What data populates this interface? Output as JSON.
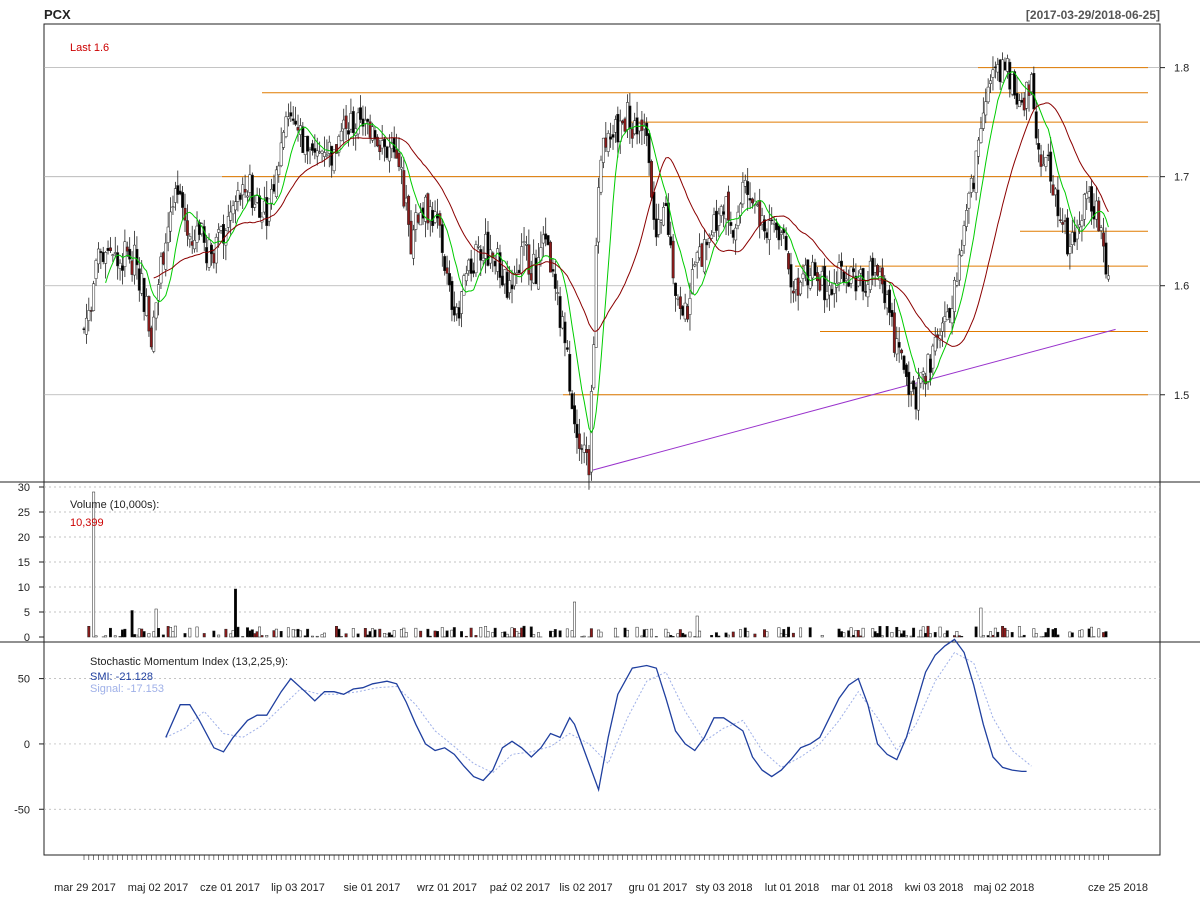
{
  "header": {
    "symbol": "PCX",
    "date_range": "[2017-03-29/2018-06-25]"
  },
  "colors": {
    "up_candle": "#ffffff",
    "down_candle": "#000000",
    "red_candle": "#8b1a1a",
    "sma_green": "#00cc00",
    "sma_darkred": "#8b0000",
    "hline_orange": "#e07b00",
    "trend_purple": "#9932cc",
    "smi_line": "#1f3f9f",
    "signal_line": "#9fb0e8",
    "grid": "#b0b0b0",
    "last_text": "#cc0000"
  },
  "chart_data": [
    {
      "type": "candlestick",
      "panel": "price",
      "last_label": "Last 1.6",
      "ylim": [
        1.42,
        1.84
      ],
      "yticks": [
        1.5,
        1.6,
        1.7,
        1.8
      ],
      "ytick_labels": [
        "1.5",
        "1.6",
        "1.7",
        "1.8"
      ],
      "x_tick_labels": [
        "mar 29 2017",
        "maj 02 2017",
        "cze 01 2017",
        "lip 03 2017",
        "sie 01 2017",
        "wrz 01 2017",
        "paź 02 2017",
        "lis 02 2017",
        "gru 01 2017",
        "sty 03 2018",
        "lut 01 2018",
        "mar 01 2018",
        "kwi 03 2018",
        "maj 02 2018",
        "cze 25 2018"
      ],
      "price_path": [
        [
          0,
          1.56
        ],
        [
          6,
          1.62
        ],
        [
          10,
          1.64
        ],
        [
          14,
          1.62
        ],
        [
          18,
          1.63
        ],
        [
          22,
          1.62
        ],
        [
          26,
          1.58
        ],
        [
          28,
          1.55
        ],
        [
          32,
          1.62
        ],
        [
          36,
          1.67
        ],
        [
          40,
          1.68
        ],
        [
          44,
          1.64
        ],
        [
          48,
          1.65
        ],
        [
          52,
          1.63
        ],
        [
          56,
          1.64
        ],
        [
          60,
          1.66
        ],
        [
          64,
          1.68
        ],
        [
          68,
          1.69
        ],
        [
          72,
          1.68
        ],
        [
          76,
          1.67
        ],
        [
          80,
          1.7
        ],
        [
          84,
          1.76
        ],
        [
          88,
          1.75
        ],
        [
          92,
          1.73
        ],
        [
          96,
          1.71
        ],
        [
          100,
          1.73
        ],
        [
          104,
          1.72
        ],
        [
          108,
          1.75
        ],
        [
          112,
          1.75
        ],
        [
          116,
          1.74
        ],
        [
          120,
          1.75
        ],
        [
          124,
          1.73
        ],
        [
          128,
          1.72
        ],
        [
          132,
          1.7
        ],
        [
          136,
          1.64
        ],
        [
          140,
          1.67
        ],
        [
          144,
          1.67
        ],
        [
          148,
          1.65
        ],
        [
          152,
          1.59
        ],
        [
          156,
          1.58
        ],
        [
          160,
          1.61
        ],
        [
          164,
          1.64
        ],
        [
          168,
          1.63
        ],
        [
          172,
          1.62
        ],
        [
          176,
          1.6
        ],
        [
          180,
          1.62
        ],
        [
          184,
          1.63
        ],
        [
          188,
          1.61
        ],
        [
          192,
          1.65
        ],
        [
          196,
          1.59
        ],
        [
          200,
          1.55
        ],
        [
          204,
          1.48
        ],
        [
          208,
          1.45
        ],
        [
          210,
          1.43
        ],
        [
          212,
          1.55
        ],
        [
          214,
          1.7
        ],
        [
          218,
          1.75
        ],
        [
          222,
          1.74
        ],
        [
          226,
          1.76
        ],
        [
          230,
          1.74
        ],
        [
          234,
          1.75
        ],
        [
          238,
          1.64
        ],
        [
          242,
          1.67
        ],
        [
          246,
          1.6
        ],
        [
          250,
          1.57
        ],
        [
          254,
          1.62
        ],
        [
          258,
          1.63
        ],
        [
          262,
          1.66
        ],
        [
          266,
          1.68
        ],
        [
          270,
          1.65
        ],
        [
          274,
          1.69
        ],
        [
          278,
          1.68
        ],
        [
          282,
          1.65
        ],
        [
          286,
          1.66
        ],
        [
          290,
          1.65
        ],
        [
          294,
          1.61
        ],
        [
          298,
          1.6
        ],
        [
          302,
          1.62
        ],
        [
          306,
          1.61
        ],
        [
          310,
          1.59
        ],
        [
          314,
          1.61
        ],
        [
          318,
          1.61
        ],
        [
          322,
          1.6
        ],
        [
          326,
          1.61
        ],
        [
          330,
          1.61
        ],
        [
          334,
          1.58
        ],
        [
          338,
          1.54
        ],
        [
          342,
          1.52
        ],
        [
          346,
          1.5
        ],
        [
          350,
          1.52
        ],
        [
          354,
          1.54
        ],
        [
          358,
          1.56
        ],
        [
          362,
          1.6
        ],
        [
          366,
          1.65
        ],
        [
          370,
          1.7
        ],
        [
          374,
          1.77
        ],
        [
          378,
          1.79
        ],
        [
          382,
          1.8
        ],
        [
          386,
          1.79
        ],
        [
          390,
          1.77
        ],
        [
          394,
          1.78
        ],
        [
          398,
          1.72
        ],
        [
          402,
          1.7
        ],
        [
          406,
          1.66
        ],
        [
          410,
          1.63
        ],
        [
          414,
          1.66
        ],
        [
          418,
          1.69
        ],
        [
          422,
          1.66
        ],
        [
          424,
          1.65
        ],
        [
          426,
          1.6
        ]
      ],
      "horizontal_levels": [
        1.8,
        1.777,
        1.75,
        1.7,
        1.65,
        1.618,
        1.558,
        1.5
      ],
      "trendline": [
        [
          210,
          1.43
        ],
        [
          429,
          1.56
        ]
      ]
    },
    {
      "type": "bar",
      "panel": "volume",
      "title": "Volume (10,000s):",
      "last_value_label": "10,399",
      "ylim": [
        0,
        30
      ],
      "yticks": [
        0,
        5,
        10,
        15,
        20,
        25,
        30
      ],
      "ytick_labels": [
        "0",
        "5",
        "10",
        "15",
        "20",
        "25",
        "30"
      ],
      "spikes": [
        [
          4,
          29
        ],
        [
          20,
          5.3
        ],
        [
          30,
          5.6
        ],
        [
          63,
          9.6
        ],
        [
          204,
          7
        ],
        [
          255,
          4.2
        ],
        [
          373,
          5.8
        ]
      ]
    },
    {
      "type": "line",
      "panel": "smi",
      "title": "Stochastic Momentum Index (13,2,25,9):",
      "series": [
        {
          "name": "SMI",
          "label": "SMI: -21.128"
        },
        {
          "name": "Signal",
          "label": "Signal: -17.153"
        }
      ],
      "ylim": [
        -85,
        78
      ],
      "yticks": [
        -50,
        0,
        50
      ],
      "ytick_labels": [
        "-50",
        "0",
        "50"
      ],
      "smi": [
        [
          34,
          5
        ],
        [
          40,
          30
        ],
        [
          44,
          30
        ],
        [
          48,
          18
        ],
        [
          54,
          -3
        ],
        [
          58,
          -6
        ],
        [
          62,
          5
        ],
        [
          68,
          18
        ],
        [
          72,
          22
        ],
        [
          76,
          22
        ],
        [
          82,
          40
        ],
        [
          86,
          50
        ],
        [
          92,
          40
        ],
        [
          96,
          33
        ],
        [
          100,
          40
        ],
        [
          104,
          40
        ],
        [
          108,
          38
        ],
        [
          112,
          42
        ],
        [
          116,
          43
        ],
        [
          120,
          46
        ],
        [
          126,
          48
        ],
        [
          130,
          46
        ],
        [
          134,
          32
        ],
        [
          138,
          15
        ],
        [
          142,
          0
        ],
        [
          146,
          -5
        ],
        [
          150,
          -3
        ],
        [
          154,
          -8
        ],
        [
          158,
          -17
        ],
        [
          162,
          -25
        ],
        [
          166,
          -28
        ],
        [
          170,
          -20
        ],
        [
          174,
          -3
        ],
        [
          178,
          2
        ],
        [
          182,
          -3
        ],
        [
          186,
          -10
        ],
        [
          190,
          -3
        ],
        [
          194,
          8
        ],
        [
          198,
          5
        ],
        [
          202,
          20
        ],
        [
          204,
          15
        ],
        [
          206,
          5
        ],
        [
          210,
          -15
        ],
        [
          214,
          -35
        ],
        [
          218,
          5
        ],
        [
          222,
          38
        ],
        [
          228,
          58
        ],
        [
          234,
          60
        ],
        [
          238,
          58
        ],
        [
          242,
          35
        ],
        [
          246,
          10
        ],
        [
          250,
          0
        ],
        [
          254,
          -5
        ],
        [
          258,
          5
        ],
        [
          262,
          20
        ],
        [
          266,
          20
        ],
        [
          270,
          15
        ],
        [
          274,
          10
        ],
        [
          278,
          -10
        ],
        [
          282,
          -20
        ],
        [
          286,
          -25
        ],
        [
          290,
          -20
        ],
        [
          294,
          -12
        ],
        [
          298,
          -3
        ],
        [
          302,
          0
        ],
        [
          306,
          5
        ],
        [
          310,
          20
        ],
        [
          314,
          35
        ],
        [
          318,
          45
        ],
        [
          322,
          50
        ],
        [
          326,
          30
        ],
        [
          330,
          0
        ],
        [
          334,
          -8
        ],
        [
          338,
          -12
        ],
        [
          342,
          5
        ],
        [
          346,
          30
        ],
        [
          350,
          55
        ],
        [
          354,
          68
        ],
        [
          358,
          75
        ],
        [
          362,
          80
        ],
        [
          366,
          70
        ],
        [
          370,
          45
        ],
        [
          374,
          15
        ],
        [
          378,
          -10
        ],
        [
          382,
          -18
        ],
        [
          386,
          -20
        ],
        [
          390,
          -21
        ],
        [
          392,
          -21
        ]
      ],
      "signal": [
        [
          34,
          5
        ],
        [
          42,
          12
        ],
        [
          50,
          25
        ],
        [
          58,
          8
        ],
        [
          66,
          5
        ],
        [
          74,
          14
        ],
        [
          82,
          28
        ],
        [
          90,
          42
        ],
        [
          98,
          38
        ],
        [
          106,
          38
        ],
        [
          114,
          40
        ],
        [
          122,
          43
        ],
        [
          130,
          44
        ],
        [
          138,
          30
        ],
        [
          146,
          10
        ],
        [
          154,
          -2
        ],
        [
          162,
          -15
        ],
        [
          170,
          -22
        ],
        [
          178,
          -8
        ],
        [
          186,
          -6
        ],
        [
          194,
          -2
        ],
        [
          202,
          8
        ],
        [
          210,
          0
        ],
        [
          218,
          -15
        ],
        [
          226,
          20
        ],
        [
          234,
          48
        ],
        [
          242,
          55
        ],
        [
          250,
          25
        ],
        [
          258,
          2
        ],
        [
          266,
          12
        ],
        [
          274,
          18
        ],
        [
          282,
          -5
        ],
        [
          290,
          -18
        ],
        [
          298,
          -10
        ],
        [
          306,
          0
        ],
        [
          314,
          18
        ],
        [
          322,
          40
        ],
        [
          330,
          20
        ],
        [
          338,
          -5
        ],
        [
          346,
          15
        ],
        [
          354,
          48
        ],
        [
          362,
          70
        ],
        [
          370,
          62
        ],
        [
          378,
          20
        ],
        [
          386,
          -5
        ],
        [
          394,
          -17
        ]
      ]
    }
  ]
}
